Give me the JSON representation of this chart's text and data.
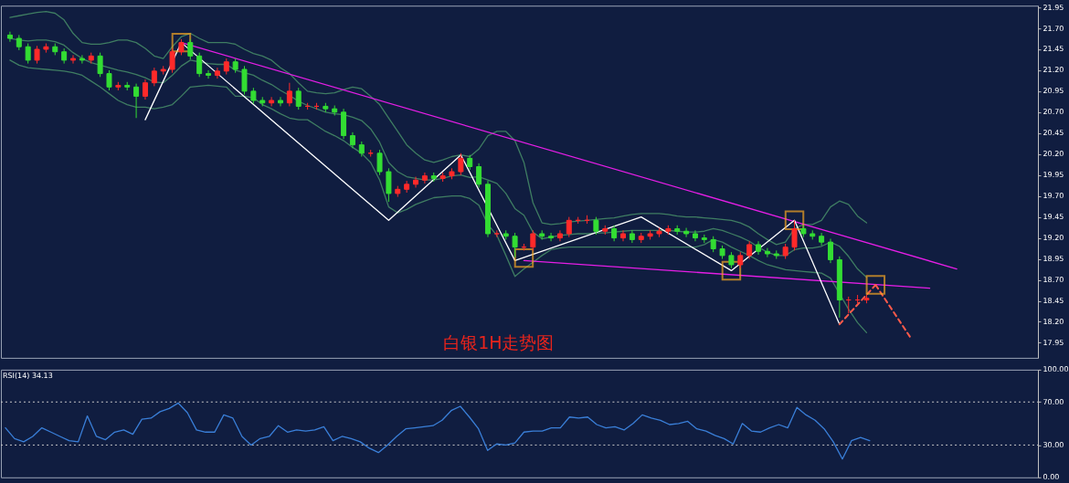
{
  "chart_data": [
    {
      "type": "candlestick",
      "annotations": [
        "白银1H走势图"
      ],
      "categories": [
        null,
        null,
        null,
        null,
        null,
        null,
        null,
        null,
        null,
        null,
        null,
        null,
        null,
        null,
        null,
        null,
        null,
        null,
        null,
        null,
        null,
        null,
        null,
        null,
        null,
        null,
        null,
        null,
        null,
        null,
        null,
        null,
        null,
        null,
        null,
        null,
        null,
        null,
        null,
        null,
        null,
        null,
        null,
        null,
        null,
        null,
        null,
        null,
        null,
        null,
        null,
        null,
        null,
        null,
        null,
        null,
        null,
        null,
        null,
        null,
        null,
        null,
        null,
        null,
        null,
        null,
        null,
        null,
        null,
        null,
        null,
        null,
        null,
        null,
        null,
        null,
        null,
        null,
        null,
        null,
        null,
        null,
        null,
        null,
        null,
        null,
        null,
        null,
        null,
        null,
        null,
        null,
        null,
        null,
        null,
        null,
        null,
        null,
        null,
        null,
        null,
        null,
        null,
        null,
        null,
        null,
        null,
        null,
        null,
        null,
        null,
        null,
        null,
        null
      ],
      "ohlc": [
        [
          21.62,
          21.66,
          21.54,
          21.58
        ],
        [
          21.58,
          21.62,
          21.44,
          21.48
        ],
        [
          21.48,
          21.52,
          21.28,
          21.32
        ],
        [
          21.32,
          21.49,
          21.28,
          21.45
        ],
        [
          21.45,
          21.52,
          21.41,
          21.48
        ],
        [
          21.48,
          21.52,
          21.38,
          21.42
        ],
        [
          21.42,
          21.46,
          21.28,
          21.32
        ],
        [
          21.32,
          21.38,
          21.28,
          21.34
        ],
        [
          21.34,
          21.38,
          21.28,
          21.32
        ],
        [
          21.32,
          21.41,
          21.28,
          21.37
        ],
        [
          21.37,
          21.41,
          21.12,
          21.16
        ],
        [
          21.16,
          21.2,
          20.96,
          21.0
        ],
        [
          21.0,
          21.06,
          20.96,
          21.02
        ],
        [
          21.02,
          21.06,
          20.96,
          21.0
        ],
        [
          21.0,
          21.04,
          20.63,
          20.89
        ],
        [
          20.89,
          21.09,
          20.85,
          21.05
        ],
        [
          21.05,
          21.23,
          21.01,
          21.19
        ],
        [
          21.19,
          21.25,
          21.15,
          21.21
        ],
        [
          21.21,
          21.46,
          21.17,
          21.42
        ],
        [
          21.42,
          21.57,
          21.38,
          21.53
        ],
        [
          21.53,
          21.57,
          21.33,
          21.37
        ],
        [
          21.37,
          21.41,
          21.12,
          21.16
        ],
        [
          21.16,
          21.2,
          21.1,
          21.14
        ],
        [
          21.14,
          21.23,
          21.1,
          21.19
        ],
        [
          21.19,
          21.34,
          21.15,
          21.3
        ],
        [
          21.3,
          21.34,
          21.17,
          21.21
        ],
        [
          21.21,
          21.25,
          20.91,
          20.95
        ],
        [
          20.95,
          20.99,
          20.8,
          20.84
        ],
        [
          20.84,
          20.88,
          20.77,
          20.81
        ],
        [
          20.81,
          20.88,
          20.77,
          20.84
        ],
        [
          20.84,
          20.88,
          20.77,
          20.81
        ],
        [
          20.81,
          21.05,
          20.77,
          20.95
        ],
        [
          20.95,
          20.99,
          20.73,
          20.77
        ],
        [
          20.77,
          20.81,
          20.73,
          20.77
        ],
        [
          20.77,
          20.81,
          20.73,
          20.77
        ],
        [
          20.77,
          20.81,
          20.7,
          20.74
        ],
        [
          20.74,
          20.78,
          20.66,
          20.7
        ],
        [
          20.7,
          20.74,
          20.38,
          20.42
        ],
        [
          20.42,
          20.46,
          20.27,
          20.31
        ],
        [
          20.31,
          20.35,
          20.17,
          20.21
        ],
        [
          20.21,
          20.25,
          20.17,
          20.21
        ],
        [
          20.21,
          20.25,
          19.95,
          19.99
        ],
        [
          19.99,
          20.03,
          19.63,
          19.73
        ],
        [
          19.73,
          19.82,
          19.69,
          19.78
        ],
        [
          19.78,
          19.88,
          19.74,
          19.84
        ],
        [
          19.84,
          19.93,
          19.8,
          19.89
        ],
        [
          19.89,
          19.98,
          19.85,
          19.94
        ],
        [
          19.94,
          19.98,
          19.87,
          19.91
        ],
        [
          19.91,
          19.98,
          19.87,
          19.94
        ],
        [
          19.94,
          20.03,
          19.9,
          19.99
        ],
        [
          19.99,
          20.21,
          19.95,
          20.15
        ],
        [
          20.15,
          20.19,
          20.01,
          20.05
        ],
        [
          20.05,
          20.09,
          19.8,
          19.84
        ],
        [
          19.84,
          19.88,
          19.21,
          19.25
        ],
        [
          19.25,
          19.29,
          19.21,
          19.25
        ],
        [
          19.25,
          19.29,
          19.18,
          19.22
        ],
        [
          19.22,
          19.26,
          18.97,
          19.09
        ],
        [
          19.09,
          19.13,
          19.05,
          19.09
        ],
        [
          19.09,
          19.29,
          19.05,
          19.25
        ],
        [
          19.25,
          19.29,
          19.18,
          19.22
        ],
        [
          19.22,
          19.26,
          19.16,
          19.2
        ],
        [
          19.2,
          19.29,
          19.16,
          19.25
        ],
        [
          19.25,
          19.45,
          19.21,
          19.41
        ],
        [
          19.41,
          19.45,
          19.37,
          19.41
        ],
        [
          19.41,
          19.47,
          19.37,
          19.41
        ],
        [
          19.41,
          19.45,
          19.24,
          19.28
        ],
        [
          19.28,
          19.35,
          19.24,
          19.31
        ],
        [
          19.31,
          19.35,
          19.16,
          19.2
        ],
        [
          19.2,
          19.29,
          19.16,
          19.25
        ],
        [
          19.25,
          19.29,
          19.14,
          19.18
        ],
        [
          19.18,
          19.26,
          19.14,
          19.22
        ],
        [
          19.22,
          19.29,
          19.18,
          19.25
        ],
        [
          19.25,
          19.32,
          19.21,
          19.28
        ],
        [
          19.28,
          19.35,
          19.24,
          19.31
        ],
        [
          19.31,
          19.35,
          19.24,
          19.28
        ],
        [
          19.28,
          19.32,
          19.21,
          19.25
        ],
        [
          19.25,
          19.29,
          19.16,
          19.2
        ],
        [
          19.2,
          19.24,
          19.14,
          19.18
        ],
        [
          19.18,
          19.22,
          19.03,
          19.07
        ],
        [
          19.07,
          19.11,
          18.95,
          18.99
        ],
        [
          18.99,
          19.03,
          18.84,
          18.88
        ],
        [
          18.88,
          19.03,
          18.84,
          18.99
        ],
        [
          18.99,
          19.16,
          18.95,
          19.12
        ],
        [
          19.12,
          19.16,
          19.0,
          19.04
        ],
        [
          19.04,
          19.08,
          18.97,
          19.01
        ],
        [
          19.01,
          19.05,
          18.95,
          18.99
        ],
        [
          18.99,
          19.13,
          18.95,
          19.09
        ],
        [
          19.09,
          19.41,
          19.05,
          19.31
        ],
        [
          19.31,
          19.35,
          19.21,
          19.25
        ],
        [
          19.25,
          19.29,
          19.18,
          19.22
        ],
        [
          19.22,
          19.26,
          19.11,
          19.15
        ],
        [
          19.15,
          19.19,
          18.9,
          18.94
        ],
        [
          18.94,
          18.98,
          18.25,
          18.46
        ],
        [
          18.46,
          18.5,
          18.3,
          18.46
        ],
        [
          18.46,
          18.52,
          18.42,
          18.46
        ],
        [
          18.46,
          18.52,
          18.42,
          18.48
        ],
        null,
        null,
        null,
        null,
        null,
        null,
        null,
        null,
        null,
        null,
        null,
        null,
        null,
        null,
        null,
        null,
        null,
        null
      ],
      "colors": [
        "#33dd33",
        "#33dd33",
        "#33dd33",
        "#ff2a2a",
        "#ff2a2a",
        "#33dd33",
        "#33dd33",
        "#ff2a2a",
        "#33dd33",
        "#ff2a2a",
        "#33dd33",
        "#33dd33",
        "#ff2a2a",
        "#33dd33",
        "#33dd33",
        "#ff2a2a",
        "#ff2a2a",
        "#ff2a2a",
        "#ff2a2a",
        "#ff2a2a",
        "#33dd33",
        "#33dd33",
        "#33dd33",
        "#ff2a2a",
        "#ff2a2a",
        "#33dd33",
        "#33dd33",
        "#33dd33",
        "#33dd33",
        "#ff2a2a",
        "#33dd33",
        "#ff2a2a",
        "#33dd33",
        "#ff2a2a",
        "#ff2a2a",
        "#33dd33",
        "#33dd33",
        "#33dd33",
        "#33dd33",
        "#33dd33",
        "#ff2a2a",
        "#33dd33",
        "#33dd33",
        "#ff2a2a",
        "#ff2a2a",
        "#ff2a2a",
        "#ff2a2a",
        "#33dd33",
        "#ff2a2a",
        "#ff2a2a",
        "#ff2a2a",
        "#33dd33",
        "#33dd33",
        "#33dd33",
        "#ff2a2a",
        "#33dd33",
        "#33dd33",
        "#ff2a2a",
        "#ff2a2a",
        "#33dd33",
        "#33dd33",
        "#ff2a2a",
        "#ff2a2a",
        "#ff2a2a",
        "#ff2a2a",
        "#33dd33",
        "#ff2a2a",
        "#33dd33",
        "#ff2a2a",
        "#33dd33",
        "#ff2a2a",
        "#ff2a2a",
        "#ff2a2a",
        "#ff2a2a",
        "#33dd33",
        "#33dd33",
        "#33dd33",
        "#33dd33",
        "#33dd33",
        "#33dd33",
        "#33dd33",
        "#ff2a2a",
        "#ff2a2a",
        "#33dd33",
        "#33dd33",
        "#33dd33",
        "#ff2a2a",
        "#ff2a2a",
        "#33dd33",
        "#33dd33",
        "#33dd33",
        "#33dd33",
        "#33dd33",
        "#ff2a2a",
        "#ff2a2a",
        "#ff2a2a",
        null,
        null,
        null,
        null,
        null,
        null,
        null,
        null,
        null,
        null,
        null,
        null,
        null,
        null,
        null,
        null,
        null,
        null
      ],
      "ylim": [
        17.77,
        21.97
      ],
      "yticks": [
        {
          "value": 17.95,
          "label": "17.95"
        },
        {
          "value": 18.2,
          "label": "18.20"
        },
        {
          "value": 18.45,
          "label": "18.45"
        },
        {
          "value": 18.7,
          "label": "18.70"
        },
        {
          "value": 18.95,
          "label": "18.95"
        },
        {
          "value": 19.2,
          "label": "19.20"
        },
        {
          "value": 19.45,
          "label": "19.45"
        },
        {
          "value": 19.7,
          "label": "19.70"
        },
        {
          "value": 19.95,
          "label": "19.95"
        },
        {
          "value": 20.2,
          "label": "20.20"
        },
        {
          "value": 20.45,
          "label": "20.45"
        },
        {
          "value": 20.7,
          "label": "20.70"
        },
        {
          "value": 20.95,
          "label": "20.95"
        },
        {
          "value": 21.2,
          "label": "21.20"
        },
        {
          "value": 21.45,
          "label": "21.45"
        },
        {
          "value": 21.7,
          "label": "21.70"
        },
        {
          "value": 21.95,
          "label": "21.95"
        }
      ],
      "series": [
        {
          "type": "line",
          "color": "#3f7d62",
          "values": [
            21.83,
            21.85,
            21.87,
            21.89,
            21.9,
            21.88,
            21.8,
            21.64,
            21.53,
            21.51,
            21.51,
            21.53,
            21.56,
            21.56,
            21.53,
            21.46,
            21.37,
            21.34,
            21.48,
            21.6,
            21.64,
            21.58,
            21.53,
            21.53,
            21.53,
            21.51,
            21.45,
            21.4,
            21.37,
            21.32,
            21.23,
            21.16,
            21.05,
            20.95,
            20.93,
            20.92,
            20.93,
            20.97,
            21.0,
            20.98,
            20.89,
            20.79,
            20.63,
            20.47,
            20.31,
            20.21,
            20.13,
            20.1,
            20.13,
            20.17,
            20.19,
            20.17,
            20.26,
            20.42,
            20.47,
            20.47,
            20.36,
            20.1,
            19.62,
            19.38,
            19.36,
            19.37,
            19.39,
            19.4,
            19.41,
            19.42,
            19.43,
            19.44,
            19.46,
            19.48,
            19.49,
            19.49,
            19.49,
            19.48,
            19.46,
            19.45,
            19.45,
            19.44,
            19.43,
            19.42,
            19.41,
            19.38,
            19.33,
            19.25,
            19.18,
            19.12,
            19.15,
            19.31,
            19.36,
            19.36,
            19.41,
            19.57,
            19.64,
            19.6,
            19.46,
            19.38,
            null,
            null,
            null,
            null,
            null,
            null,
            null,
            null,
            null,
            null,
            null,
            null,
            null,
            null,
            null,
            null,
            null,
            null
          ]
        },
        {
          "type": "line",
          "color": "#3f7d62",
          "values": [
            21.58,
            21.56,
            21.55,
            21.56,
            21.56,
            21.54,
            21.5,
            21.41,
            21.34,
            21.29,
            21.26,
            21.23,
            21.2,
            21.18,
            21.15,
            21.11,
            21.06,
            21.05,
            21.14,
            21.25,
            21.32,
            21.3,
            21.28,
            21.27,
            21.27,
            21.2,
            21.17,
            21.14,
            21.08,
            21.03,
            20.96,
            20.9,
            20.83,
            20.78,
            20.74,
            20.7,
            20.68,
            20.67,
            20.64,
            20.6,
            20.5,
            20.34,
            20.1,
            19.99,
            19.93,
            19.91,
            19.89,
            19.89,
            19.91,
            19.94,
            19.95,
            19.92,
            19.93,
            19.89,
            19.85,
            19.73,
            19.55,
            19.47,
            19.27,
            19.19,
            19.21,
            19.23,
            19.24,
            19.25,
            19.25,
            19.26,
            19.26,
            19.27,
            19.28,
            19.29,
            19.29,
            19.29,
            19.29,
            19.29,
            19.28,
            19.27,
            19.27,
            19.28,
            19.31,
            19.29,
            19.25,
            19.21,
            19.16,
            19.09,
            19.03,
            18.99,
            18.99,
            19.06,
            19.08,
            19.08,
            19.1,
            19.15,
            19.1,
            18.98,
            18.83,
            18.73,
            null,
            null,
            null,
            null,
            null,
            null,
            null,
            null,
            null,
            null,
            null,
            null,
            null,
            null,
            null,
            null,
            null,
            null
          ]
        },
        {
          "type": "line",
          "color": "#3f7d62",
          "values": [
            21.32,
            21.26,
            21.23,
            21.22,
            21.21,
            21.2,
            21.19,
            21.17,
            21.14,
            21.07,
            21.0,
            20.92,
            20.84,
            20.79,
            20.76,
            20.76,
            20.74,
            20.76,
            20.79,
            20.89,
            21.0,
            21.01,
            21.02,
            21.01,
            21.0,
            20.89,
            20.89,
            20.87,
            20.79,
            20.74,
            20.68,
            20.63,
            20.61,
            20.61,
            20.54,
            20.47,
            20.42,
            20.36,
            20.28,
            20.21,
            20.1,
            19.89,
            19.57,
            19.5,
            19.54,
            19.6,
            19.64,
            19.68,
            19.69,
            19.7,
            19.7,
            19.67,
            19.59,
            19.36,
            19.23,
            18.99,
            18.74,
            18.83,
            18.91,
            18.99,
            19.06,
            19.08,
            19.09,
            19.09,
            19.09,
            19.09,
            19.09,
            19.09,
            19.09,
            19.09,
            19.09,
            19.09,
            19.09,
            19.09,
            19.09,
            19.09,
            19.09,
            19.12,
            19.18,
            19.15,
            19.09,
            19.04,
            18.99,
            18.93,
            18.88,
            18.85,
            18.82,
            18.81,
            18.8,
            18.79,
            18.78,
            18.72,
            null,
            18.35,
            18.19,
            18.07,
            null,
            null,
            null,
            null,
            null,
            null,
            null,
            null,
            null,
            null,
            null,
            null,
            null,
            null,
            null,
            null,
            null,
            null
          ]
        },
        {
          "type": "line",
          "color": "#e61ee6",
          "values": [
            null,
            null,
            null,
            null,
            null,
            null,
            null,
            null,
            null,
            null,
            null,
            null,
            null,
            null,
            null,
            null,
            null,
            null,
            null,
            21.53,
            null,
            null,
            null,
            null,
            null,
            null,
            null,
            null,
            null,
            null,
            null,
            null,
            null,
            null,
            null,
            null,
            null,
            null,
            null,
            null,
            null,
            null,
            null,
            null,
            null,
            null,
            null,
            null,
            null,
            null,
            null,
            null,
            null,
            null,
            null,
            null,
            null,
            null,
            null,
            null,
            null,
            null,
            null,
            null,
            null,
            null,
            null,
            null,
            null,
            null,
            null,
            null,
            null,
            null,
            null,
            null,
            null,
            null,
            null,
            null,
            null,
            null,
            null,
            null,
            null,
            null,
            null,
            null,
            null,
            null,
            null,
            null,
            null,
            null,
            null,
            null,
            null,
            null,
            null,
            null,
            null,
            null,
            null,
            null,
            null,
            18.83,
            null,
            null,
            null,
            null,
            null,
            null,
            null,
            null
          ]
        },
        {
          "type": "line",
          "color": "#e61ee6",
          "values": [
            null,
            null,
            null,
            null,
            null,
            null,
            null,
            null,
            null,
            null,
            null,
            null,
            null,
            null,
            null,
            null,
            null,
            null,
            null,
            null,
            null,
            null,
            null,
            null,
            null,
            null,
            null,
            null,
            null,
            null,
            null,
            null,
            null,
            null,
            null,
            null,
            null,
            null,
            null,
            null,
            null,
            null,
            null,
            null,
            null,
            null,
            null,
            null,
            null,
            null,
            null,
            null,
            null,
            null,
            null,
            null,
            null,
            18.93,
            null,
            null,
            null,
            null,
            null,
            null,
            null,
            null,
            null,
            null,
            null,
            null,
            null,
            null,
            null,
            null,
            null,
            null,
            null,
            null,
            null,
            null,
            null,
            null,
            null,
            null,
            null,
            null,
            null,
            null,
            null,
            null,
            null,
            null,
            null,
            null,
            null,
            null,
            null,
            null,
            null,
            null,
            null,
            null,
            18.6,
            null,
            null,
            null,
            null,
            null,
            null,
            null,
            null,
            null,
            null,
            null
          ]
        },
        {
          "type": "line",
          "color": "#ffffff",
          "values": [
            null,
            null,
            null,
            null,
            null,
            null,
            null,
            null,
            null,
            null,
            null,
            null,
            null,
            null,
            null,
            20.61,
            null,
            null,
            null,
            21.53,
            null,
            null,
            null,
            null,
            null,
            null,
            null,
            null,
            null,
            null,
            null,
            null,
            null,
            null,
            null,
            null,
            null,
            null,
            null,
            null,
            null,
            null,
            19.41,
            null,
            null,
            null,
            null,
            null,
            null,
            null,
            20.19,
            null,
            null,
            null,
            null,
            null,
            18.93,
            null,
            null,
            null,
            null,
            null,
            null,
            null,
            null,
            null,
            null,
            null,
            null,
            null,
            19.45,
            null,
            null,
            null,
            null,
            null,
            null,
            null,
            null,
            null,
            18.81,
            null,
            null,
            null,
            null,
            null,
            null,
            19.41,
            null,
            null,
            null,
            null,
            18.17,
            null,
            null,
            null,
            null,
            null,
            null,
            null,
            null,
            null,
            null,
            null,
            null,
            null,
            null,
            null,
            null,
            null,
            null,
            null,
            null,
            null
          ]
        },
        {
          "type": "line",
          "color": "#ff5a4a",
          "line_style": "dashed",
          "values": [
            null,
            null,
            null,
            null,
            null,
            null,
            null,
            null,
            null,
            null,
            null,
            null,
            null,
            null,
            null,
            null,
            null,
            null,
            null,
            null,
            null,
            null,
            null,
            null,
            null,
            null,
            null,
            null,
            null,
            null,
            null,
            null,
            null,
            null,
            null,
            null,
            null,
            null,
            null,
            null,
            null,
            null,
            null,
            null,
            null,
            null,
            null,
            null,
            null,
            null,
            null,
            null,
            null,
            null,
            null,
            null,
            null,
            null,
            null,
            null,
            null,
            null,
            null,
            null,
            null,
            null,
            null,
            null,
            null,
            null,
            null,
            null,
            null,
            null,
            null,
            null,
            null,
            null,
            null,
            null,
            null,
            null,
            null,
            null,
            null,
            null,
            null,
            null,
            null,
            null,
            null,
            null,
            18.17,
            null,
            null,
            null,
            18.64,
            null,
            null,
            null,
            null,
            null,
            null,
            null,
            null,
            null,
            null,
            null,
            null,
            null,
            null,
            null,
            null,
            null
          ]
        },
        {
          "type": "line",
          "color": "#ff5a4a",
          "line_style": "dashed",
          "values": [
            null,
            null,
            null,
            null,
            null,
            null,
            null,
            null,
            null,
            null,
            null,
            null,
            null,
            null,
            null,
            null,
            null,
            null,
            null,
            null,
            null,
            null,
            null,
            null,
            null,
            null,
            null,
            null,
            null,
            null,
            null,
            null,
            null,
            null,
            null,
            null,
            null,
            null,
            null,
            null,
            null,
            null,
            null,
            null,
            null,
            null,
            null,
            null,
            null,
            null,
            null,
            null,
            null,
            null,
            null,
            null,
            null,
            null,
            null,
            null,
            null,
            null,
            null,
            null,
            null,
            null,
            null,
            null,
            null,
            null,
            null,
            null,
            null,
            null,
            null,
            null,
            null,
            null,
            null,
            null,
            null,
            null,
            null,
            null,
            null,
            null,
            null,
            null,
            null,
            null,
            null,
            null,
            null,
            null,
            null,
            null,
            18.64,
            null,
            null,
            null,
            17.99,
            null,
            null,
            null,
            null,
            null,
            null,
            null,
            null,
            null,
            null,
            null,
            null,
            null
          ]
        },
        {
          "type": "scatter",
          "color": "#f5a623",
          "marker": "square",
          "values": [
            null,
            null,
            null,
            null,
            null,
            null,
            null,
            null,
            null,
            null,
            null,
            null,
            null,
            null,
            null,
            null,
            null,
            null,
            null,
            21.53,
            null,
            null,
            null,
            null,
            null,
            null,
            null,
            null,
            null,
            null,
            null,
            null,
            null,
            null,
            null,
            null,
            null,
            null,
            null,
            null,
            null,
            null,
            null,
            null,
            null,
            null,
            null,
            null,
            null,
            null,
            null,
            null,
            null,
            null,
            null,
            null,
            null,
            18.96,
            null,
            null,
            null,
            null,
            null,
            null,
            null,
            null,
            null,
            null,
            null,
            null,
            null,
            null,
            null,
            null,
            null,
            null,
            null,
            null,
            null,
            null,
            18.81,
            null,
            null,
            null,
            null,
            null,
            null,
            19.41,
            null,
            null,
            null,
            null,
            null,
            null,
            null,
            null,
            18.64,
            null,
            null,
            null,
            null,
            null,
            null,
            null,
            null,
            null,
            null,
            null,
            null,
            null,
            null,
            null,
            null,
            null
          ]
        }
      ]
    },
    {
      "type": "line",
      "title": "RSI(14) 34.13",
      "categories": [
        null,
        null,
        null,
        null,
        null,
        null,
        null,
        null,
        null,
        null,
        null,
        null,
        null,
        null,
        null,
        null,
        null,
        null,
        null,
        null,
        null,
        null,
        null,
        null,
        null,
        null,
        null,
        null,
        null,
        null,
        null,
        null,
        null,
        null,
        null,
        null,
        null,
        null,
        null,
        null,
        null,
        null,
        null,
        null,
        null,
        null,
        null,
        null,
        null,
        null,
        null,
        null,
        null,
        null,
        null,
        null,
        null,
        null,
        null,
        null,
        null,
        null,
        null,
        null,
        null,
        null,
        null,
        null,
        null,
        null,
        null,
        null,
        null,
        null,
        null,
        null,
        null,
        null,
        null,
        null,
        null,
        null,
        null,
        null,
        null,
        null,
        null,
        null,
        null,
        null,
        null,
        null,
        null,
        null,
        null,
        null,
        null,
        null,
        null,
        null,
        null,
        null,
        null,
        null,
        null,
        null,
        null,
        null,
        null,
        null,
        null,
        null,
        null,
        null
      ],
      "ylim": [
        0,
        100
      ],
      "yticks": [
        {
          "value": 0,
          "label": "0.00"
        },
        {
          "value": 30,
          "label": "30.00"
        },
        {
          "value": 70,
          "label": "70.00"
        },
        {
          "value": 100,
          "label": "100.00"
        }
      ],
      "ref_lines": [
        {
          "axis": "y",
          "value": 70,
          "color": "#c8c8c8",
          "line_style": "dotted"
        },
        {
          "axis": "y",
          "value": 30,
          "color": "#c8c8c8",
          "line_style": "dotted"
        }
      ],
      "series": [
        {
          "color": "#3a7fd8",
          "values": [
            46,
            36,
            33,
            38,
            46,
            42,
            38,
            34,
            33,
            57,
            38,
            35,
            42,
            44,
            40,
            54,
            55,
            61,
            64,
            69,
            60,
            44,
            42,
            42,
            58,
            55,
            38,
            30,
            36,
            38,
            48,
            42,
            44,
            43,
            44,
            47,
            34,
            38,
            36,
            33,
            27,
            23,
            30,
            38,
            45,
            46,
            47,
            48,
            53,
            62,
            66,
            56,
            45,
            25,
            31,
            30,
            32,
            42,
            43,
            43,
            46,
            46,
            56,
            55,
            56,
            49,
            46,
            47,
            44,
            50,
            58,
            55,
            53,
            49,
            50,
            52,
            45,
            43,
            39,
            36,
            31,
            50,
            43,
            42,
            46,
            49,
            46,
            65,
            58,
            53,
            45,
            33,
            17,
            34,
            37,
            34,
            null,
            null,
            null,
            null,
            null,
            null,
            null,
            null,
            null,
            null,
            null,
            null,
            null,
            null,
            null,
            null,
            null,
            null
          ]
        }
      ]
    }
  ]
}
